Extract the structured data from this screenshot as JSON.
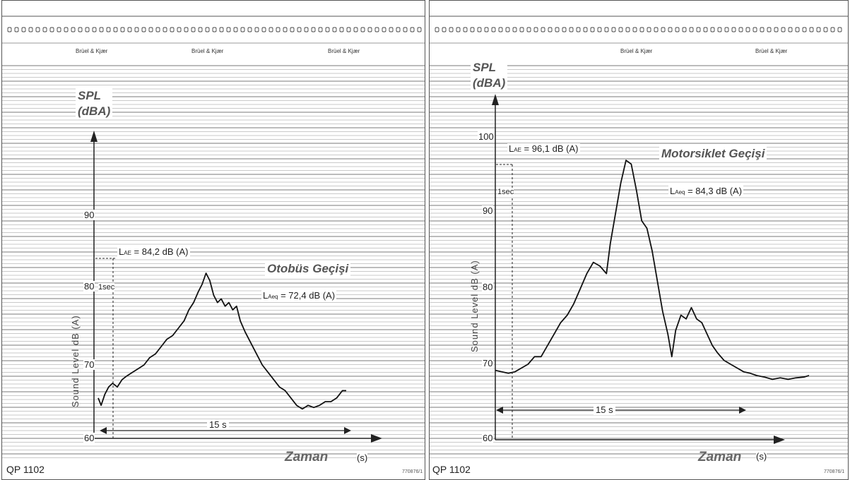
{
  "chart_data": [
    {
      "type": "line",
      "title": "Otobüs Geçişi",
      "xlabel": "Zaman",
      "x_unit": "(s)",
      "ylabel": "SPL (dBA)",
      "y_instrument_label": "Sound Level dB (A)",
      "ylim": [
        60,
        100
      ],
      "yticks": [
        "90",
        "80",
        "70",
        "60"
      ],
      "annotations": {
        "lae": "= 84,2 dB (A)",
        "laeq": "= 72,4 dB (A)",
        "duration": "15 s",
        "one_sec": "1sec"
      },
      "series": [
        {
          "values": [
            [
              0,
              65.5
            ],
            [
              0.3,
              64.5
            ],
            [
              0.7,
              66
            ],
            [
              1.1,
              67
            ],
            [
              1.5,
              67.5
            ],
            [
              2,
              67
            ],
            [
              2.5,
              68
            ],
            [
              3,
              68.5
            ],
            [
              3.6,
              69
            ],
            [
              4.2,
              69.5
            ],
            [
              4.8,
              70
            ],
            [
              5.4,
              71
            ],
            [
              6,
              71.5
            ],
            [
              6.6,
              72.5
            ],
            [
              7.2,
              73.5
            ],
            [
              7.8,
              74
            ],
            [
              8.4,
              75
            ],
            [
              9,
              76
            ],
            [
              9.5,
              77.5
            ],
            [
              10,
              78.5
            ],
            [
              10.5,
              80
            ],
            [
              10.9,
              81
            ],
            [
              11.3,
              82.5
            ],
            [
              11.7,
              81.5
            ],
            [
              12.1,
              79.5
            ],
            [
              12.5,
              78.5
            ],
            [
              12.9,
              79
            ],
            [
              13.3,
              78
            ],
            [
              13.7,
              78.5
            ],
            [
              14.1,
              77.5
            ],
            [
              14.5,
              78
            ],
            [
              14.9,
              76
            ],
            [
              15.4,
              74.5
            ],
            [
              16,
              73
            ],
            [
              16.6,
              71.5
            ],
            [
              17.2,
              70
            ],
            [
              17.8,
              69
            ],
            [
              18.4,
              68
            ],
            [
              19,
              67
            ],
            [
              19.6,
              66.5
            ],
            [
              20.2,
              65.5
            ],
            [
              20.8,
              64.5
            ],
            [
              21.4,
              64
            ],
            [
              22,
              64.5
            ],
            [
              22.6,
              64.2
            ],
            [
              23.2,
              64.5
            ],
            [
              23.8,
              65
            ],
            [
              24.4,
              65
            ],
            [
              25,
              65.5
            ],
            [
              25.6,
              66.5
            ],
            [
              26,
              66.5
            ]
          ]
        }
      ]
    },
    {
      "type": "line",
      "title": "Motorsiklet Geçişi",
      "xlabel": "Zaman",
      "x_unit": "(s)",
      "ylabel": "SPL (dBA)",
      "y_instrument_label": "Sound Level dB (A)",
      "ylim": [
        60,
        100
      ],
      "yticks": [
        "100",
        "90",
        "80",
        "70",
        "60"
      ],
      "annotations": {
        "lae": "= 96,1 dB (A)",
        "laeq": "= 84,3 dB (A)",
        "duration": "15 s",
        "one_sec": "1sec"
      },
      "series": [
        {
          "values": [
            [
              0,
              69.2
            ],
            [
              0.5,
              69
            ],
            [
              1,
              68.8
            ],
            [
              1.5,
              69
            ],
            [
              2,
              69.5
            ],
            [
              2.5,
              70
            ],
            [
              3,
              71
            ],
            [
              3.5,
              71
            ],
            [
              4,
              72.5
            ],
            [
              4.5,
              74
            ],
            [
              5,
              75.5
            ],
            [
              5.5,
              76.5
            ],
            [
              6,
              78
            ],
            [
              6.5,
              80
            ],
            [
              7,
              82
            ],
            [
              7.5,
              83.5
            ],
            [
              8,
              83
            ],
            [
              8.5,
              82
            ],
            [
              8.8,
              86
            ],
            [
              9.2,
              90
            ],
            [
              9.6,
              94
            ],
            [
              10,
              97
            ],
            [
              10.4,
              96.5
            ],
            [
              10.8,
              93
            ],
            [
              11.2,
              89
            ],
            [
              11.6,
              88
            ],
            [
              12,
              85
            ],
            [
              12.4,
              81
            ],
            [
              12.8,
              77
            ],
            [
              13.2,
              74
            ],
            [
              13.5,
              71
            ],
            [
              13.8,
              74.5
            ],
            [
              14.2,
              76.5
            ],
            [
              14.6,
              76
            ],
            [
              15,
              77.5
            ],
            [
              15.4,
              76
            ],
            [
              15.8,
              75.5
            ],
            [
              16.2,
              74
            ],
            [
              16.6,
              72.5
            ],
            [
              17,
              71.5
            ],
            [
              17.5,
              70.5
            ],
            [
              18,
              70
            ],
            [
              18.5,
              69.5
            ],
            [
              19,
              69
            ],
            [
              19.5,
              68.8
            ],
            [
              20,
              68.5
            ],
            [
              20.6,
              68.3
            ],
            [
              21.2,
              68
            ],
            [
              21.8,
              68.2
            ],
            [
              22.4,
              68
            ],
            [
              23,
              68.2
            ],
            [
              23.6,
              68.3
            ],
            [
              24,
              68.5
            ]
          ]
        }
      ]
    }
  ],
  "panels": [
    {
      "spl_line1": "SPL",
      "spl_line2": "(dBA)",
      "title": "Otobüs Geçişi",
      "lae_sym": "L",
      "lae_sub": "AE",
      "lae_val": "= 84,2 dB (A)",
      "laeq_sym": "L",
      "laeq_sub": "Aeq",
      "laeq_val": "= 72,4 dB (A)",
      "one_sec": "1sec",
      "duration": "15 s",
      "ylabel": "Sound Level dB (A)",
      "tick_90": "90",
      "tick_80": "80",
      "tick_70": "70",
      "tick_60": "60",
      "xlabel": "Zaman",
      "unit": "(s)",
      "model": "QP 1102",
      "code": "770876/1",
      "scale_text": "Brüel & Kjær"
    },
    {
      "spl_line1": "SPL",
      "spl_line2": "(dBA)",
      "title": "Motorsiklet Geçişi",
      "lae_sym": "L",
      "lae_sub": "AE",
      "lae_val": "= 96,1 dB (A)",
      "laeq_sym": "L",
      "laeq_sub": "Aeq",
      "laeq_val": "= 84,3 dB (A)",
      "one_sec": "1sec",
      "duration": "15 s",
      "ylabel": "Sound Level dB (A)",
      "tick_100": "100",
      "tick_90": "90",
      "tick_80": "80",
      "tick_70": "70",
      "tick_60": "60",
      "xlabel": "Zaman",
      "unit": "(s)",
      "model": "QP 1102",
      "code": "770876/1",
      "scale_text": "Brüel & Kjær"
    }
  ]
}
